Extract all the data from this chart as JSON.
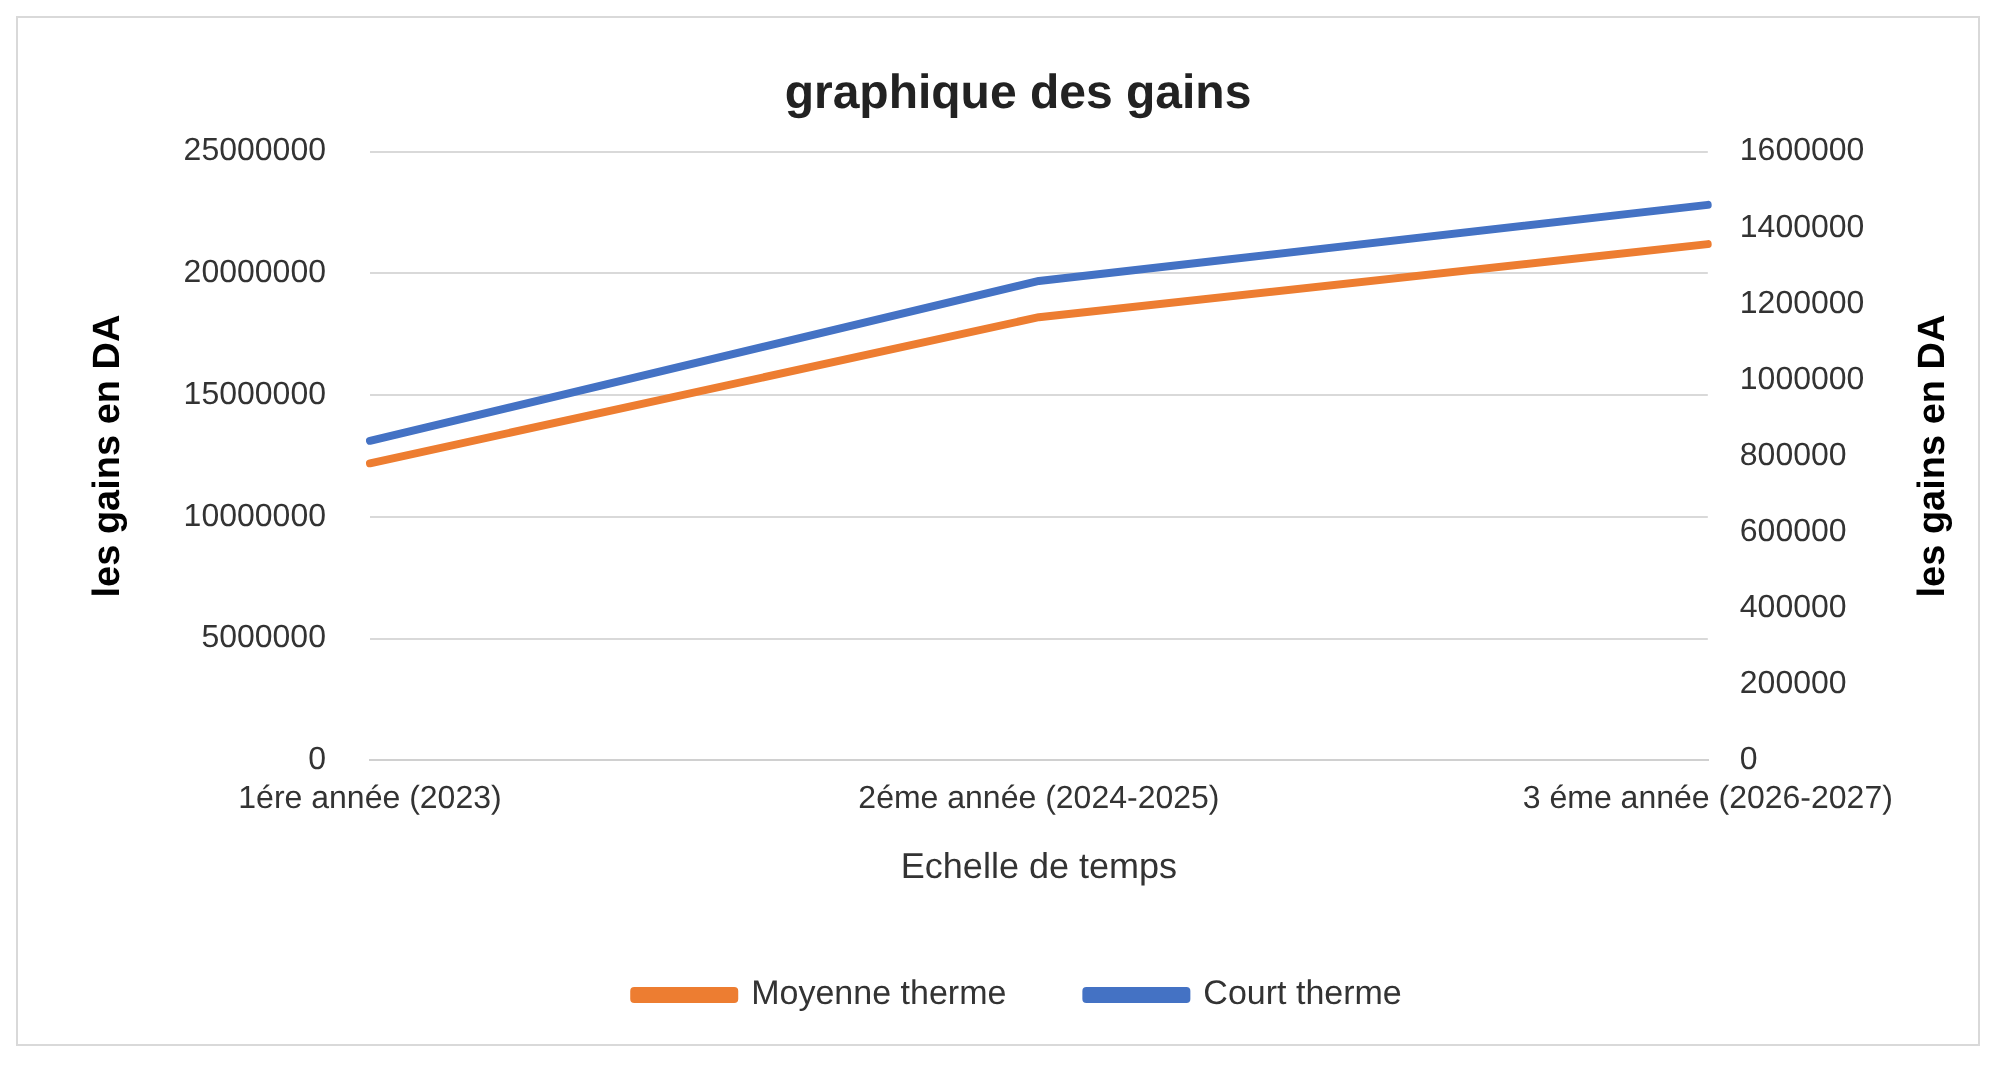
{
  "chart_data": {
    "type": "line",
    "title": "graphique des gains",
    "xlabel": "Echelle de temps",
    "ylabel": "les gains en DA",
    "y2label": "les gains en DA",
    "categories": [
      "1ére année (2023)",
      "2éme année (2024-2025)",
      "3 éme année (2026-2027)"
    ],
    "series": [
      {
        "name": "Moyenne therme",
        "color": "#ed7d31",
        "values": [
          12200000,
          18200000,
          21200000
        ]
      },
      {
        "name": "Court therme",
        "color": "#4472c4",
        "axis": "y2",
        "values": [
          840000,
          1260000,
          1460000
        ]
      }
    ],
    "ylim": [
      0,
      25000000
    ],
    "yticks": [
      0,
      5000000,
      10000000,
      15000000,
      20000000,
      25000000
    ],
    "y2lim": [
      0,
      1600000
    ],
    "y2ticks": [
      0,
      200000,
      400000,
      600000,
      800000,
      1000000,
      1200000,
      1400000,
      1600000
    ],
    "grid": "y",
    "legend": "bottom",
    "marker": "none",
    "line_style": "solid"
  }
}
